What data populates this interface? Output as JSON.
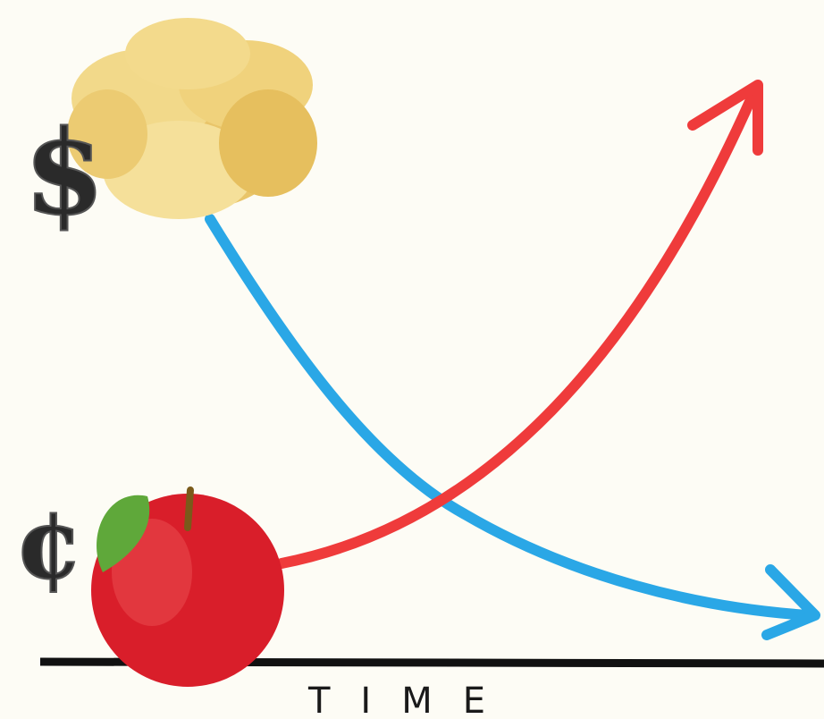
{
  "labels": {
    "high_price": "$",
    "low_price": "¢",
    "axis": "TIME"
  }
}
